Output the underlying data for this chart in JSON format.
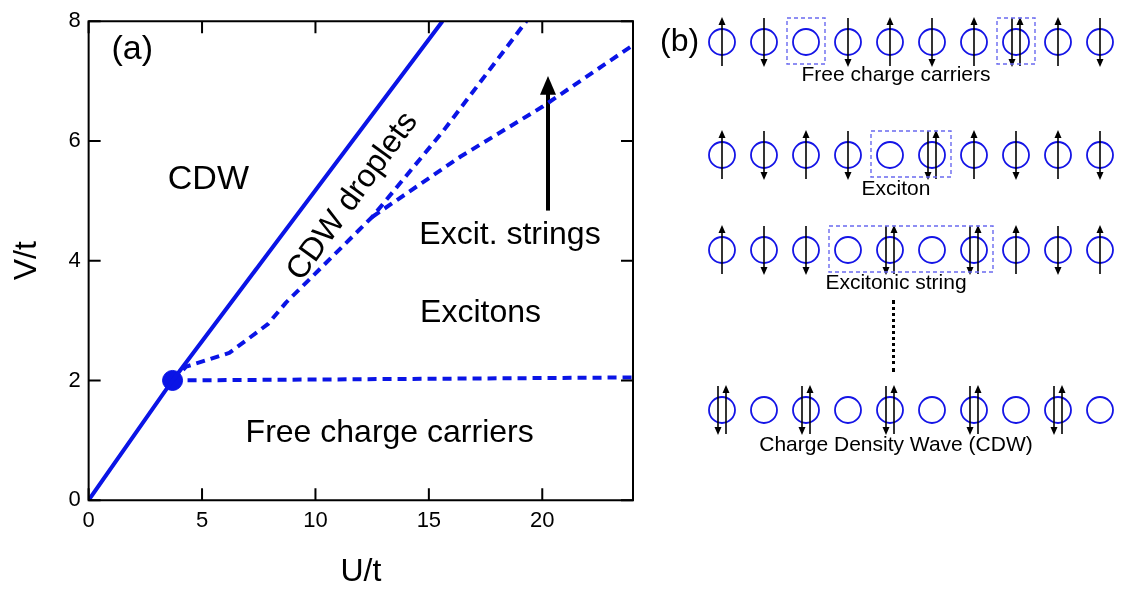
{
  "chart_data": [
    {
      "type": "line",
      "xlabel": "U/t",
      "ylabel": "V/t",
      "annotations": [
        "(a)",
        "CDW",
        "CDW droplets",
        "Excit. strings",
        "Excitons",
        "Free charge carriers"
      ],
      "xlim": [
        0,
        24
      ],
      "ylim": [
        0,
        8
      ],
      "xticks": [
        0,
        5,
        10,
        15,
        20
      ],
      "yticks": [
        0,
        2,
        4,
        6,
        8
      ],
      "series": [
        {
          "color": "#0a14e6",
          "line_style": "solid",
          "marker": "none",
          "x": [
            0,
            3.7,
            15.6
          ],
          "values": [
            0,
            2,
            8
          ]
        },
        {
          "color": "#0a14e6",
          "line_style": "dashed",
          "marker": "none",
          "x": [
            3.7,
            4.3,
            6.2,
            7.9,
            8.7,
            9.5,
            12.5,
            15.6,
            19.3
          ],
          "values": [
            2,
            2.23,
            2.46,
            2.94,
            3.3,
            3.6,
            4.73,
            6.15,
            8
          ]
        },
        {
          "color": "#0a14e6",
          "line_style": "dashed",
          "marker": "none",
          "x": [
            12.5,
            16.4,
            20,
            24
          ],
          "values": [
            4.73,
            5.74,
            6.57,
            7.6
          ]
        },
        {
          "color": "#0a14e6",
          "line_style": "dashed",
          "marker": "none",
          "x": [
            3.7,
            24
          ],
          "values": [
            2,
            2.05
          ]
        },
        {
          "type": "scatter",
          "color": "#0a14e6",
          "marker": "circle",
          "x": [
            3.7
          ],
          "values": [
            2
          ]
        }
      ]
    },
    {
      "type": "other",
      "title": "(b)",
      "annotations": [
        "Free charge carriers",
        "Exciton",
        "Excitonic string",
        "Charge Density Wave (CDW)"
      ]
    }
  ]
}
